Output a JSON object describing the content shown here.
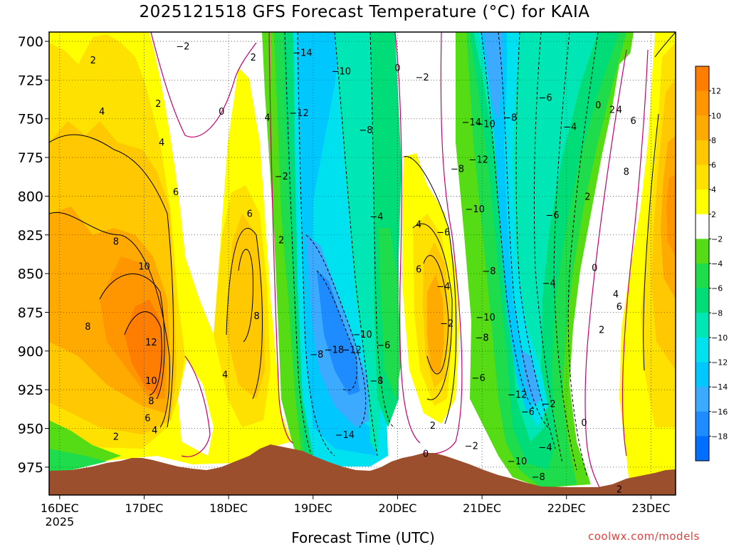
{
  "title": "2025121518 GFS Forecast Temperature (°C) for KAIA",
  "credit": "coolwx.com/models",
  "chart_data": {
    "type": "heatmap",
    "title": "2025121518 GFS Forecast Temperature (°C) for KAIA",
    "xlabel": "Forecast Time (UTC)",
    "ylabel": "",
    "x_ticks": [
      {
        "value": 0,
        "label": "16DEC",
        "sublabel": "2025"
      },
      {
        "value": 24,
        "label": "17DEC"
      },
      {
        "value": 48,
        "label": "18DEC"
      },
      {
        "value": 72,
        "label": "19DEC"
      },
      {
        "value": 96,
        "label": "20DEC"
      },
      {
        "value": 120,
        "label": "21DEC"
      },
      {
        "value": 144,
        "label": "22DEC"
      },
      {
        "value": 168,
        "label": "23DEC"
      }
    ],
    "xlim": [
      -3,
      175
    ],
    "y_ticks": [
      700,
      725,
      750,
      775,
      800,
      825,
      850,
      875,
      900,
      925,
      950,
      975
    ],
    "ylim": [
      694,
      993
    ],
    "grid": true,
    "colorbar": {
      "colors": [
        "#006eff",
        "#1e8cff",
        "#3caaff",
        "#00c8ff",
        "#00e1f0",
        "#00e6b4",
        "#00dc78",
        "#1edc4b",
        "#55dc14",
        "#ffffff",
        "#ffff00",
        "#ffe100",
        "#ffc800",
        "#ffaa00",
        "#ff9600",
        "#ff7d00"
      ],
      "tick_labels": [
        "-18",
        "-16",
        "-14",
        "-12",
        "-10",
        "-8",
        "-6",
        "-4",
        "-2",
        "2",
        "4",
        "6",
        "8",
        "10",
        "12"
      ]
    },
    "contour_labels": [
      {
        "x": 9.5,
        "p": 712,
        "t": "2"
      },
      {
        "x": 12,
        "p": 745,
        "t": "4"
      },
      {
        "x": 16,
        "p": 829,
        "t": "8"
      },
      {
        "x": 24,
        "p": 845,
        "t": "10"
      },
      {
        "x": 8,
        "p": 884,
        "t": "8"
      },
      {
        "x": 26,
        "p": 894,
        "t": "12"
      },
      {
        "x": 26,
        "p": 919,
        "t": "10"
      },
      {
        "x": 26,
        "p": 932,
        "t": "8"
      },
      {
        "x": 25,
        "p": 943,
        "t": "6"
      },
      {
        "x": 27,
        "p": 951,
        "t": "4"
      },
      {
        "x": 16,
        "p": 955,
        "t": "2"
      },
      {
        "x": 28,
        "p": 740,
        "t": "2"
      },
      {
        "x": 29,
        "p": 765,
        "t": "4"
      },
      {
        "x": 33,
        "p": 797,
        "t": "6"
      },
      {
        "x": 35,
        "p": 703,
        "t": "-2"
      },
      {
        "x": 46,
        "p": 745,
        "t": "0"
      },
      {
        "x": 55,
        "p": 710,
        "t": "2"
      },
      {
        "x": 59,
        "p": 749,
        "t": "4"
      },
      {
        "x": 54,
        "p": 811,
        "t": "6"
      },
      {
        "x": 56,
        "p": 877,
        "t": "8"
      },
      {
        "x": 47,
        "p": 915,
        "t": "4"
      },
      {
        "x": 63,
        "p": 787,
        "t": "-2"
      },
      {
        "x": 63,
        "p": 828,
        "t": "2"
      },
      {
        "x": 69,
        "p": 707,
        "t": "-14"
      },
      {
        "x": 68,
        "p": 746,
        "t": "-12"
      },
      {
        "x": 80,
        "p": 719,
        "t": "-10"
      },
      {
        "x": 87,
        "p": 757,
        "t": "-8"
      },
      {
        "x": 96,
        "p": 717,
        "t": "0"
      },
      {
        "x": 103,
        "p": 723,
        "t": "-2"
      },
      {
        "x": 90,
        "p": 813,
        "t": "-4"
      },
      {
        "x": 109,
        "p": 858,
        "t": "-4"
      },
      {
        "x": 109,
        "p": 823,
        "t": "-6"
      },
      {
        "x": 110,
        "p": 882,
        "t": "-2"
      },
      {
        "x": 73,
        "p": 902,
        "t": "-8"
      },
      {
        "x": 78,
        "p": 899,
        "t": "-18"
      },
      {
        "x": 83,
        "p": 899,
        "t": "-12"
      },
      {
        "x": 86,
        "p": 889,
        "t": "-10"
      },
      {
        "x": 92,
        "p": 896,
        "t": "-6"
      },
      {
        "x": 90,
        "p": 919,
        "t": "-8"
      },
      {
        "x": 81,
        "p": 954,
        "t": "-14"
      },
      {
        "x": 102,
        "p": 818,
        "t": "4"
      },
      {
        "x": 102,
        "p": 847,
        "t": "6"
      },
      {
        "x": 106,
        "p": 948,
        "t": "2"
      },
      {
        "x": 104,
        "p": 966,
        "t": "0"
      },
      {
        "x": 117,
        "p": 752,
        "t": "-14"
      },
      {
        "x": 121,
        "p": 753,
        "t": "-10"
      },
      {
        "x": 119,
        "p": 776,
        "t": "-12"
      },
      {
        "x": 113,
        "p": 782,
        "t": "-8"
      },
      {
        "x": 118,
        "p": 808,
        "t": "-10"
      },
      {
        "x": 122,
        "p": 848,
        "t": "-8"
      },
      {
        "x": 121,
        "p": 878,
        "t": "-10"
      },
      {
        "x": 120,
        "p": 891,
        "t": "-8"
      },
      {
        "x": 119,
        "p": 917,
        "t": "-6"
      },
      {
        "x": 117,
        "p": 961,
        "t": "-2"
      },
      {
        "x": 128,
        "p": 749,
        "t": "-8"
      },
      {
        "x": 138,
        "p": 736,
        "t": "-6"
      },
      {
        "x": 145,
        "p": 755,
        "t": "-4"
      },
      {
        "x": 140,
        "p": 812,
        "t": "-6"
      },
      {
        "x": 139,
        "p": 856,
        "t": "-4"
      },
      {
        "x": 130,
        "p": 928,
        "t": "-12"
      },
      {
        "x": 133,
        "p": 939,
        "t": "-6"
      },
      {
        "x": 139,
        "p": 934,
        "t": "-2"
      },
      {
        "x": 138,
        "p": 962,
        "t": "-4"
      },
      {
        "x": 130,
        "p": 971,
        "t": "-10"
      },
      {
        "x": 136,
        "p": 981,
        "t": "-8"
      },
      {
        "x": 149,
        "p": 946,
        "t": "0"
      },
      {
        "x": 153,
        "p": 741,
        "t": "0"
      },
      {
        "x": 157,
        "p": 744,
        "t": "2"
      },
      {
        "x": 159,
        "p": 744,
        "t": "4"
      },
      {
        "x": 163,
        "p": 751,
        "t": "6"
      },
      {
        "x": 150,
        "p": 800,
        "t": "2"
      },
      {
        "x": 161,
        "p": 784,
        "t": "8"
      },
      {
        "x": 152,
        "p": 846,
        "t": "0"
      },
      {
        "x": 158,
        "p": 863,
        "t": "4"
      },
      {
        "x": 159,
        "p": 871,
        "t": "6"
      },
      {
        "x": 154,
        "p": 886,
        "t": "2"
      },
      {
        "x": 159,
        "p": 989,
        "t": "2"
      }
    ]
  }
}
